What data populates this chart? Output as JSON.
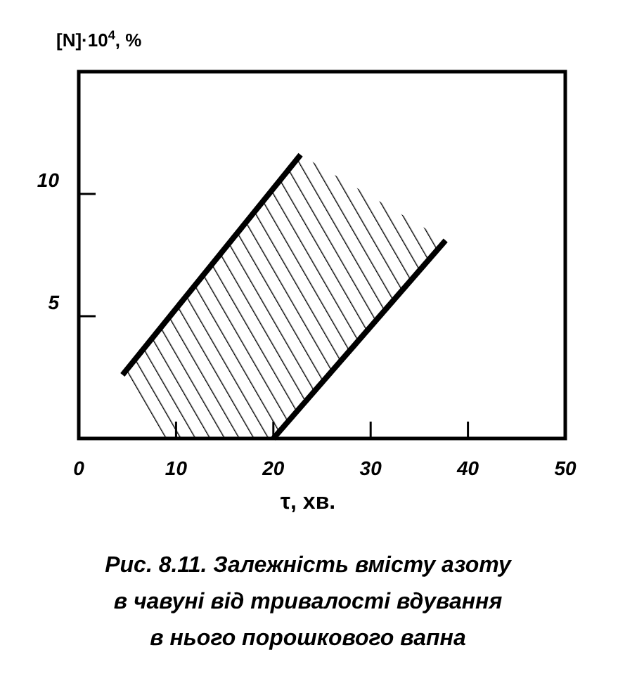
{
  "chart_data": {
    "type": "line",
    "title": "Рис. 8.11. Залежність вмісту азоту в чавуні від тривалості вдування в нього порошкового вапна",
    "xlabel": "τ, хв.",
    "ylabel": "[N]·10$^{4}$, %",
    "series": [
      {
        "color": "#000000",
        "x": [
          4.5,
          22.8
        ],
        "values": [
          2.6,
          11.6
        ]
      },
      {
        "color": "#000000",
        "x": [
          20,
          37.7
        ],
        "values": [
          0,
          8.1
        ]
      }
    ],
    "xlim": [
      0,
      50
    ],
    "ylim": [
      0,
      15
    ],
    "xticks": [
      0,
      10,
      20,
      30,
      40,
      50
    ],
    "yticks": [
      5,
      10
    ],
    "grid": false,
    "marker": "none",
    "line_style": "solid"
  }
}
